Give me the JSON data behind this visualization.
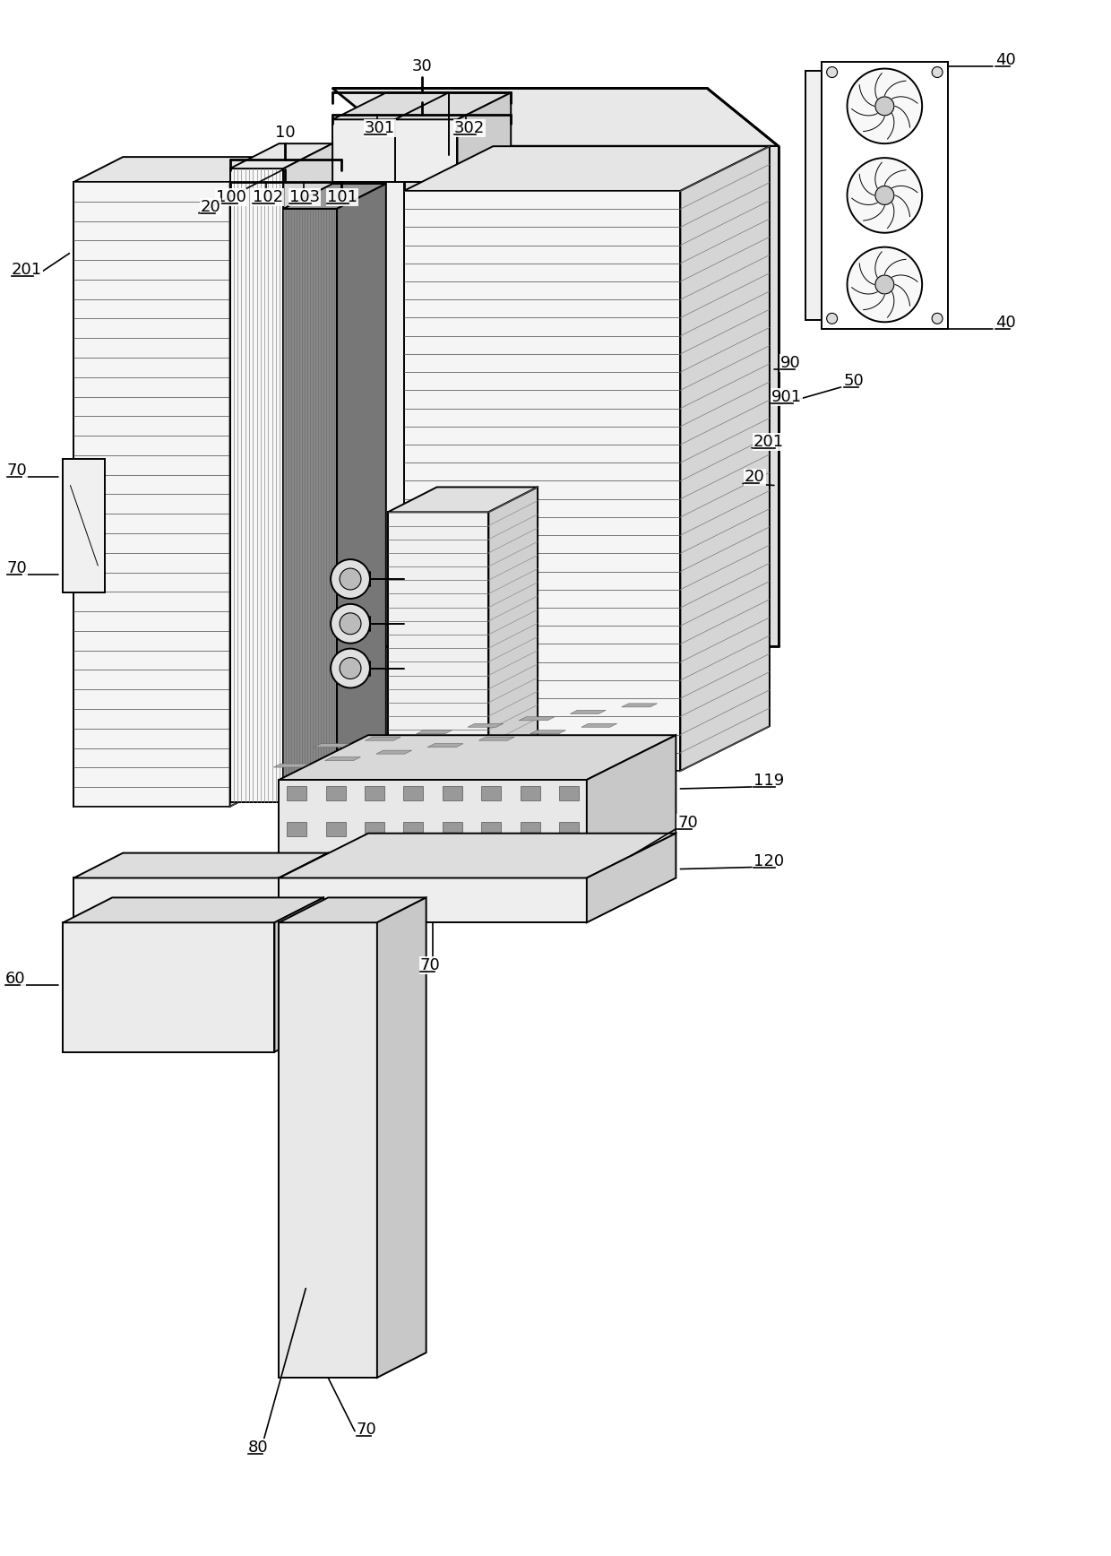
{
  "background_color": "#ffffff",
  "line_color": "#000000",
  "fig_width": 12.4,
  "fig_height": 17.36,
  "lw_main": 1.4,
  "lw_thin": 0.7,
  "lw_thick": 2.0,
  "lw_ann": 1.2,
  "fs_label": 13
}
